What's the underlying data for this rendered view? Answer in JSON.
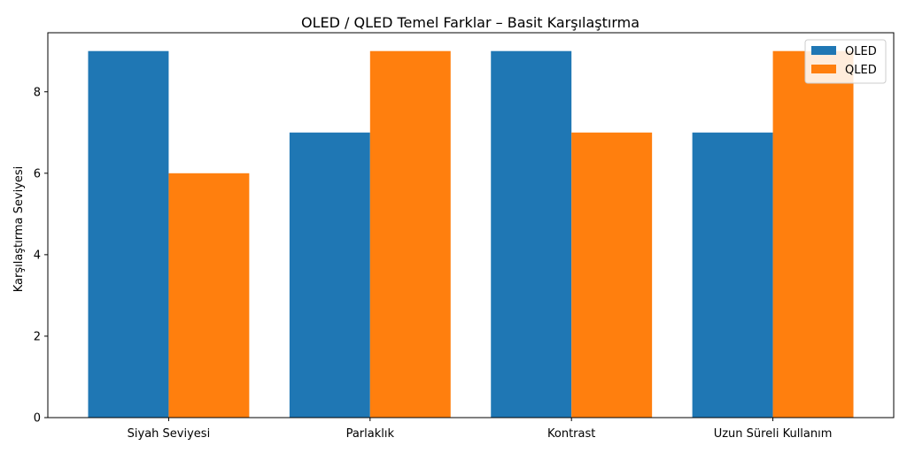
{
  "chart_data": {
    "type": "bar",
    "title": "OLED / QLED Temel Farklar – Basit Karşılaştırma",
    "xlabel": "",
    "ylabel": "Karşılaştırma Seviyesi",
    "categories": [
      "Siyah Seviyesi",
      "Parlaklık",
      "Kontrast",
      "Uzun Süreli Kullanım"
    ],
    "series": [
      {
        "name": "OLED",
        "values": [
          9,
          7,
          9,
          7
        ],
        "color": "#1f77b4"
      },
      {
        "name": "QLED",
        "values": [
          6,
          9,
          7,
          9
        ],
        "color": "#ff7f0e"
      }
    ],
    "ylim": [
      0,
      9.45
    ],
    "yticks": [
      0,
      2,
      4,
      6,
      8
    ],
    "grid": false,
    "legend_position": "top-right"
  }
}
